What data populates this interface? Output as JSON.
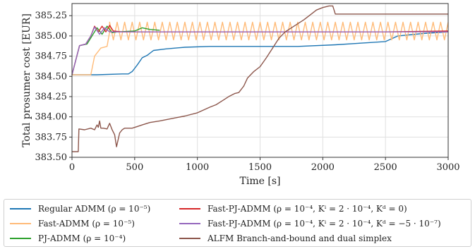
{
  "chart_data": {
    "type": "line",
    "xlabel": "Time [s]",
    "ylabel": "Total prosumer cost [EUR]",
    "xlim": [
      0,
      3000
    ],
    "ylim": [
      383.5,
      385.4
    ],
    "xticks": [
      "0",
      "500",
      "1000",
      "1500",
      "2000",
      "2500",
      "3000"
    ],
    "yticks": [
      "383.50",
      "383.75",
      "384.00",
      "384.25",
      "384.50",
      "384.75",
      "385.00",
      "385.25"
    ],
    "grid": true,
    "legend_position": "bottom",
    "series": [
      {
        "name": "Regular ADMM (ρ = 10⁻⁵)",
        "color": "#1f77b4",
        "points": [
          [
            0,
            384.52
          ],
          [
            200,
            384.52
          ],
          [
            400,
            384.53
          ],
          [
            450,
            384.53
          ],
          [
            480,
            384.56
          ],
          [
            520,
            384.64
          ],
          [
            560,
            384.73
          ],
          [
            600,
            384.76
          ],
          [
            650,
            384.82
          ],
          [
            750,
            384.84
          ],
          [
            900,
            384.86
          ],
          [
            1100,
            384.87
          ],
          [
            1500,
            384.87
          ],
          [
            1800,
            384.87
          ],
          [
            2100,
            384.89
          ],
          [
            2300,
            384.91
          ],
          [
            2500,
            384.93
          ],
          [
            2600,
            385.0
          ],
          [
            2800,
            385.03
          ],
          [
            3000,
            385.05
          ]
        ]
      },
      {
        "name": "Fast-ADMM (ρ = 10⁻⁵)",
        "color": "#ffbb78",
        "oscillation": {
          "x_start": 300,
          "x_end": 3000,
          "low": 384.95,
          "high": 385.17,
          "period": 60
        },
        "points": [
          [
            0,
            384.52
          ],
          [
            150,
            384.52
          ],
          [
            180,
            384.75
          ],
          [
            230,
            384.85
          ],
          [
            280,
            384.87
          ],
          [
            300,
            385.05
          ]
        ]
      },
      {
        "name": "PJ-ADMM (ρ = 10⁻⁴)",
        "color": "#2ca02c",
        "points": [
          [
            0,
            384.52
          ],
          [
            60,
            384.88
          ],
          [
            120,
            384.9
          ],
          [
            160,
            385.0
          ],
          [
            200,
            385.1
          ],
          [
            240,
            385.02
          ],
          [
            280,
            385.12
          ],
          [
            320,
            385.04
          ],
          [
            360,
            385.05
          ],
          [
            500,
            385.06
          ],
          [
            560,
            385.1
          ],
          [
            620,
            385.08
          ],
          [
            700,
            385.07
          ]
        ]
      },
      {
        "name": "Fast-PJ-ADMM (ρ = 10⁻⁴, Kⁱ = 2 · 10⁻⁴, Kᵈ = 0)",
        "color": "#d62728",
        "points": [
          [
            0,
            384.52
          ],
          [
            60,
            384.88
          ],
          [
            110,
            384.9
          ],
          [
            150,
            385.0
          ],
          [
            180,
            385.12
          ],
          [
            210,
            385.05
          ],
          [
            240,
            385.12
          ],
          [
            270,
            385.05
          ],
          [
            300,
            385.13
          ],
          [
            330,
            385.06
          ],
          [
            400,
            385.05
          ],
          [
            600,
            385.05
          ],
          [
            1000,
            385.05
          ],
          [
            1500,
            385.05
          ],
          [
            2000,
            385.05
          ],
          [
            2500,
            385.05
          ],
          [
            3000,
            385.06
          ]
        ]
      },
      {
        "name": "Fast-PJ-ADMM (ρ = 10⁻⁴, Kⁱ = 2 · 10⁻⁴, Kᵈ = −5 · 10⁻⁷)",
        "color": "#9467bd",
        "points": [
          [
            0,
            384.52
          ],
          [
            60,
            384.88
          ],
          [
            110,
            384.9
          ],
          [
            150,
            385.0
          ],
          [
            180,
            385.11
          ],
          [
            220,
            385.02
          ],
          [
            260,
            385.1
          ],
          [
            300,
            385.05
          ],
          [
            400,
            385.05
          ],
          [
            1000,
            385.05
          ],
          [
            2000,
            385.05
          ],
          [
            3000,
            385.05
          ]
        ]
      },
      {
        "name": "ALFM Branch-and-bound and dual simplex",
        "color": "#8c564b",
        "points": [
          [
            0,
            383.57
          ],
          [
            50,
            383.57
          ],
          [
            55,
            383.85
          ],
          [
            100,
            383.84
          ],
          [
            150,
            383.86
          ],
          [
            180,
            383.84
          ],
          [
            200,
            383.9
          ],
          [
            210,
            383.87
          ],
          [
            220,
            383.95
          ],
          [
            230,
            383.86
          ],
          [
            250,
            383.86
          ],
          [
            280,
            383.85
          ],
          [
            300,
            383.92
          ],
          [
            320,
            383.84
          ],
          [
            340,
            383.78
          ],
          [
            355,
            383.63
          ],
          [
            380,
            383.8
          ],
          [
            400,
            383.84
          ],
          [
            420,
            383.86
          ],
          [
            480,
            383.86
          ],
          [
            520,
            383.88
          ],
          [
            560,
            383.9
          ],
          [
            620,
            383.93
          ],
          [
            700,
            383.95
          ],
          [
            800,
            383.98
          ],
          [
            900,
            384.01
          ],
          [
            1000,
            384.05
          ],
          [
            1100,
            384.12
          ],
          [
            1150,
            384.15
          ],
          [
            1200,
            384.2
          ],
          [
            1250,
            384.25
          ],
          [
            1300,
            384.29
          ],
          [
            1330,
            384.3
          ],
          [
            1370,
            384.38
          ],
          [
            1400,
            384.48
          ],
          [
            1450,
            384.56
          ],
          [
            1500,
            384.62
          ],
          [
            1550,
            384.73
          ],
          [
            1600,
            384.85
          ],
          [
            1650,
            384.97
          ],
          [
            1700,
            385.05
          ],
          [
            1750,
            385.1
          ],
          [
            1800,
            385.15
          ],
          [
            1850,
            385.2
          ],
          [
            1900,
            385.26
          ],
          [
            1950,
            385.32
          ],
          [
            2000,
            385.35
          ],
          [
            2050,
            385.37
          ],
          [
            2080,
            385.37
          ],
          [
            2100,
            385.27
          ],
          [
            2300,
            385.27
          ],
          [
            2600,
            385.27
          ],
          [
            3000,
            385.27
          ]
        ]
      }
    ]
  }
}
